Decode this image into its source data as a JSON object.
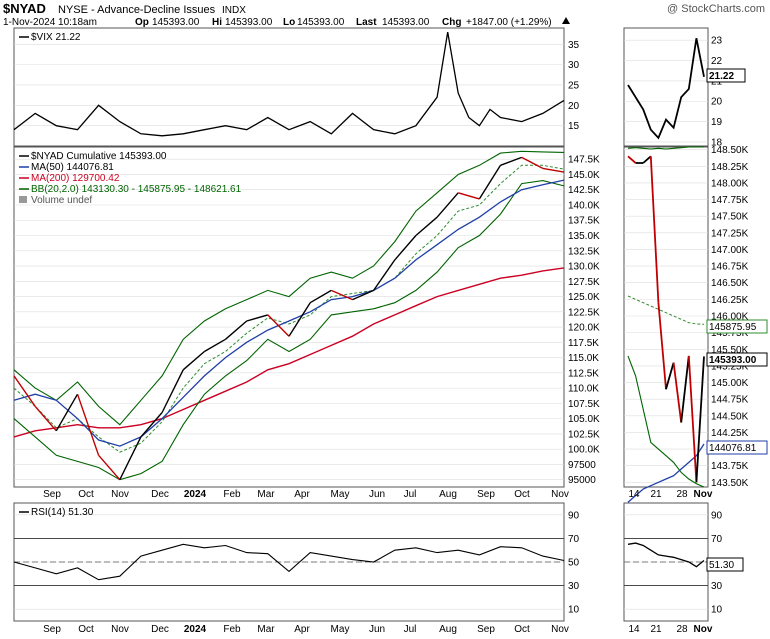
{
  "header": {
    "symbol": "$NYAD",
    "exchange": "NYSE - Advance-Decline Issues",
    "index_tag": "INDX",
    "watermark": "@ StockCharts.com",
    "date_line": "1-Nov-2024 10:18am",
    "quote": {
      "open_label": "Op",
      "open": "145393.00",
      "high_label": "Hi",
      "high": "145393.00",
      "low_label": "Lo",
      "low": "145393.00",
      "last_label": "Last",
      "last": "145393.00",
      "chg_label": "Chg",
      "chg": "+1847.00 (+1.29%)"
    }
  },
  "colors": {
    "price": "#000000",
    "up_bar": "#000000",
    "down_bar": "#c00000",
    "ma50": "#1f3fa8",
    "ma200": "#cc0022",
    "bb": "#006400",
    "bb_mid": "#2e8b2e",
    "grid": "#dddddd",
    "frame": "#555555"
  },
  "chart_data": [
    {
      "panel": "vix",
      "type": "line",
      "legend": [
        "$VIX 21.22"
      ],
      "last_value": "21.22",
      "ylim": [
        10,
        39
      ],
      "yticks": [
        "35",
        "30",
        "25",
        "20",
        "15"
      ],
      "zoom_yticks": [
        "23",
        "22",
        "21",
        "20",
        "19",
        "18"
      ],
      "zoom_ylim": [
        17.8,
        23.6
      ],
      "x": [
        0,
        10,
        20,
        30,
        40,
        50,
        60,
        70,
        80,
        90,
        100,
        110,
        120,
        130,
        140,
        150,
        160,
        170,
        180,
        190,
        200,
        205,
        210,
        215,
        220,
        225,
        230,
        240,
        250,
        260
      ],
      "y": [
        14,
        18,
        15,
        14,
        20,
        16,
        13,
        12.5,
        13,
        14,
        15,
        14,
        17,
        14,
        16,
        13,
        18,
        14,
        13,
        15,
        22,
        38,
        23,
        17,
        15,
        19,
        17,
        16,
        18,
        21.2
      ],
      "zoom_values": [
        20.8,
        20.2,
        19.6,
        18.6,
        18.2,
        19.1,
        18.7,
        20.2,
        20.6,
        23.1,
        21.2
      ]
    },
    {
      "panel": "main",
      "type": "line",
      "legend": [
        "$NYAD Cumulative 145393.00",
        "MA(50) 144076.81",
        "MA(200) 129700.42",
        "BB(20,2.0) 143130.30 - 145875.95 - 148621.61",
        "Volume undef"
      ],
      "ylim": [
        93800,
        149500
      ],
      "yticks": [
        "147.5K",
        "145.0K",
        "142.5K",
        "140.0K",
        "137.5K",
        "135.0K",
        "132.5K",
        "130.0K",
        "127.5K",
        "125.0K",
        "122.5K",
        "120.0K",
        "117.5K",
        "115.0K",
        "112.5K",
        "110.0K",
        "107.5K",
        "105.0K",
        "102.5K",
        "100.0K",
        "97500",
        "95000"
      ],
      "zoom_yticks": [
        "148.50K",
        "148.25K",
        "148.00K",
        "147.75K",
        "147.50K",
        "147.25K",
        "147.00K",
        "146.75K",
        "146.50K",
        "146.25K",
        "146.00K",
        "145.75K",
        "145.50K",
        "145.25K",
        "145.00K",
        "144.75K",
        "144.50K",
        "144.25K",
        "144.00K",
        "143.75K",
        "143.50K"
      ],
      "zoom_ylim": [
        143430,
        148540
      ],
      "zoom_labels": {
        "bb_mid": "145875.95",
        "last": "145393.00",
        "ma50": "144076.81"
      },
      "x": [
        0,
        10,
        20,
        30,
        40,
        50,
        60,
        70,
        80,
        90,
        100,
        110,
        120,
        130,
        140,
        150,
        160,
        170,
        180,
        190,
        200,
        210,
        220,
        230,
        240,
        250,
        260
      ],
      "price": [
        112000,
        107000,
        103000,
        109000,
        99000,
        95000,
        102000,
        106000,
        113000,
        116000,
        118000,
        121000,
        122000,
        118500,
        124000,
        126000,
        124500,
        126000,
        131000,
        135000,
        138000,
        142000,
        141000,
        146500,
        147800,
        146000,
        145393
      ],
      "ma50": [
        108000,
        109000,
        108000,
        105000,
        101500,
        100500,
        102000,
        105000,
        108500,
        112000,
        115000,
        117500,
        119500,
        121000,
        122500,
        124500,
        125000,
        126000,
        128000,
        131000,
        133500,
        136000,
        138000,
        140500,
        142500,
        143300,
        144077
      ],
      "ma200": [
        102000,
        103000,
        103500,
        104000,
        103500,
        103500,
        104000,
        105000,
        106500,
        108000,
        109500,
        111000,
        113000,
        114000,
        115500,
        117000,
        118500,
        120500,
        122000,
        123500,
        125000,
        126000,
        127000,
        128000,
        128500,
        129200,
        129700
      ],
      "bb_upper": [
        113000,
        110000,
        108000,
        111000,
        107000,
        104000,
        108000,
        112000,
        118000,
        121000,
        123000,
        124500,
        126000,
        125000,
        128000,
        129000,
        128000,
        130000,
        134000,
        139000,
        142000,
        145000,
        146500,
        148500,
        148800,
        148700,
        148622
      ],
      "bb_mid": [
        110000,
        107000,
        103500,
        105000,
        102000,
        99500,
        101000,
        104500,
        110000,
        114000,
        116000,
        119000,
        121500,
        120500,
        122000,
        125000,
        125500,
        126000,
        128000,
        132000,
        135000,
        139000,
        140000,
        143500,
        146500,
        146500,
        145876
      ],
      "bb_lower": [
        105000,
        102000,
        99000,
        98000,
        97000,
        95000,
        96000,
        98000,
        104000,
        109000,
        112000,
        114500,
        118000,
        116000,
        118000,
        122000,
        122500,
        123000,
        124000,
        126000,
        129000,
        133000,
        135000,
        138500,
        143500,
        144000,
        143130
      ],
      "zoom_price": [
        148400,
        148300,
        148300,
        148400,
        146200,
        144900,
        145300,
        144400,
        145400,
        143500,
        145393
      ],
      "zoom_ma50": [
        143200,
        143300,
        143400,
        143450,
        143500,
        143550,
        143600,
        143700,
        143800,
        143900,
        144077
      ],
      "zoom_bb_mid": [
        146300,
        146250,
        146200,
        146150,
        146100,
        146050,
        146000,
        145950,
        145900,
        145880,
        145876
      ],
      "zoom_bb_upper": [
        148520,
        148530,
        148520,
        148510,
        148520,
        148510,
        148520,
        148530,
        148540,
        148540,
        148540
      ],
      "zoom_bb_lower": [
        145400,
        145100,
        144600,
        144100,
        144000,
        143900,
        143800,
        143650,
        143550,
        143480,
        143430
      ]
    },
    {
      "panel": "rsi",
      "type": "line",
      "legend": [
        "RSI(14) 51.30"
      ],
      "last_value": "51.30",
      "ylim": [
        0,
        100
      ],
      "yticks": [
        "90",
        "70",
        "50",
        "30",
        "10"
      ],
      "levels": [
        70,
        30
      ],
      "x": [
        0,
        10,
        20,
        30,
        40,
        50,
        60,
        70,
        80,
        90,
        100,
        110,
        120,
        130,
        140,
        150,
        160,
        170,
        180,
        190,
        200,
        210,
        220,
        230,
        240,
        250,
        260
      ],
      "y": [
        50,
        45,
        40,
        45,
        35,
        38,
        55,
        60,
        65,
        62,
        64,
        58,
        57,
        42,
        58,
        55,
        52,
        50,
        60,
        62,
        58,
        60,
        56,
        63,
        62,
        55,
        51.3
      ],
      "zoom_values": [
        65,
        66,
        64,
        60,
        56,
        55,
        54,
        52,
        50,
        46,
        51.3
      ]
    }
  ],
  "x_axis": {
    "months": [
      "Sep",
      "Oct",
      "Nov",
      "Dec",
      "2024",
      "Feb",
      "Mar",
      "Apr",
      "May",
      "Jun",
      "Jul",
      "Aug",
      "Sep",
      "Oct",
      "Nov"
    ],
    "zoom_labels": [
      "14",
      "21",
      "28",
      "Nov"
    ]
  }
}
